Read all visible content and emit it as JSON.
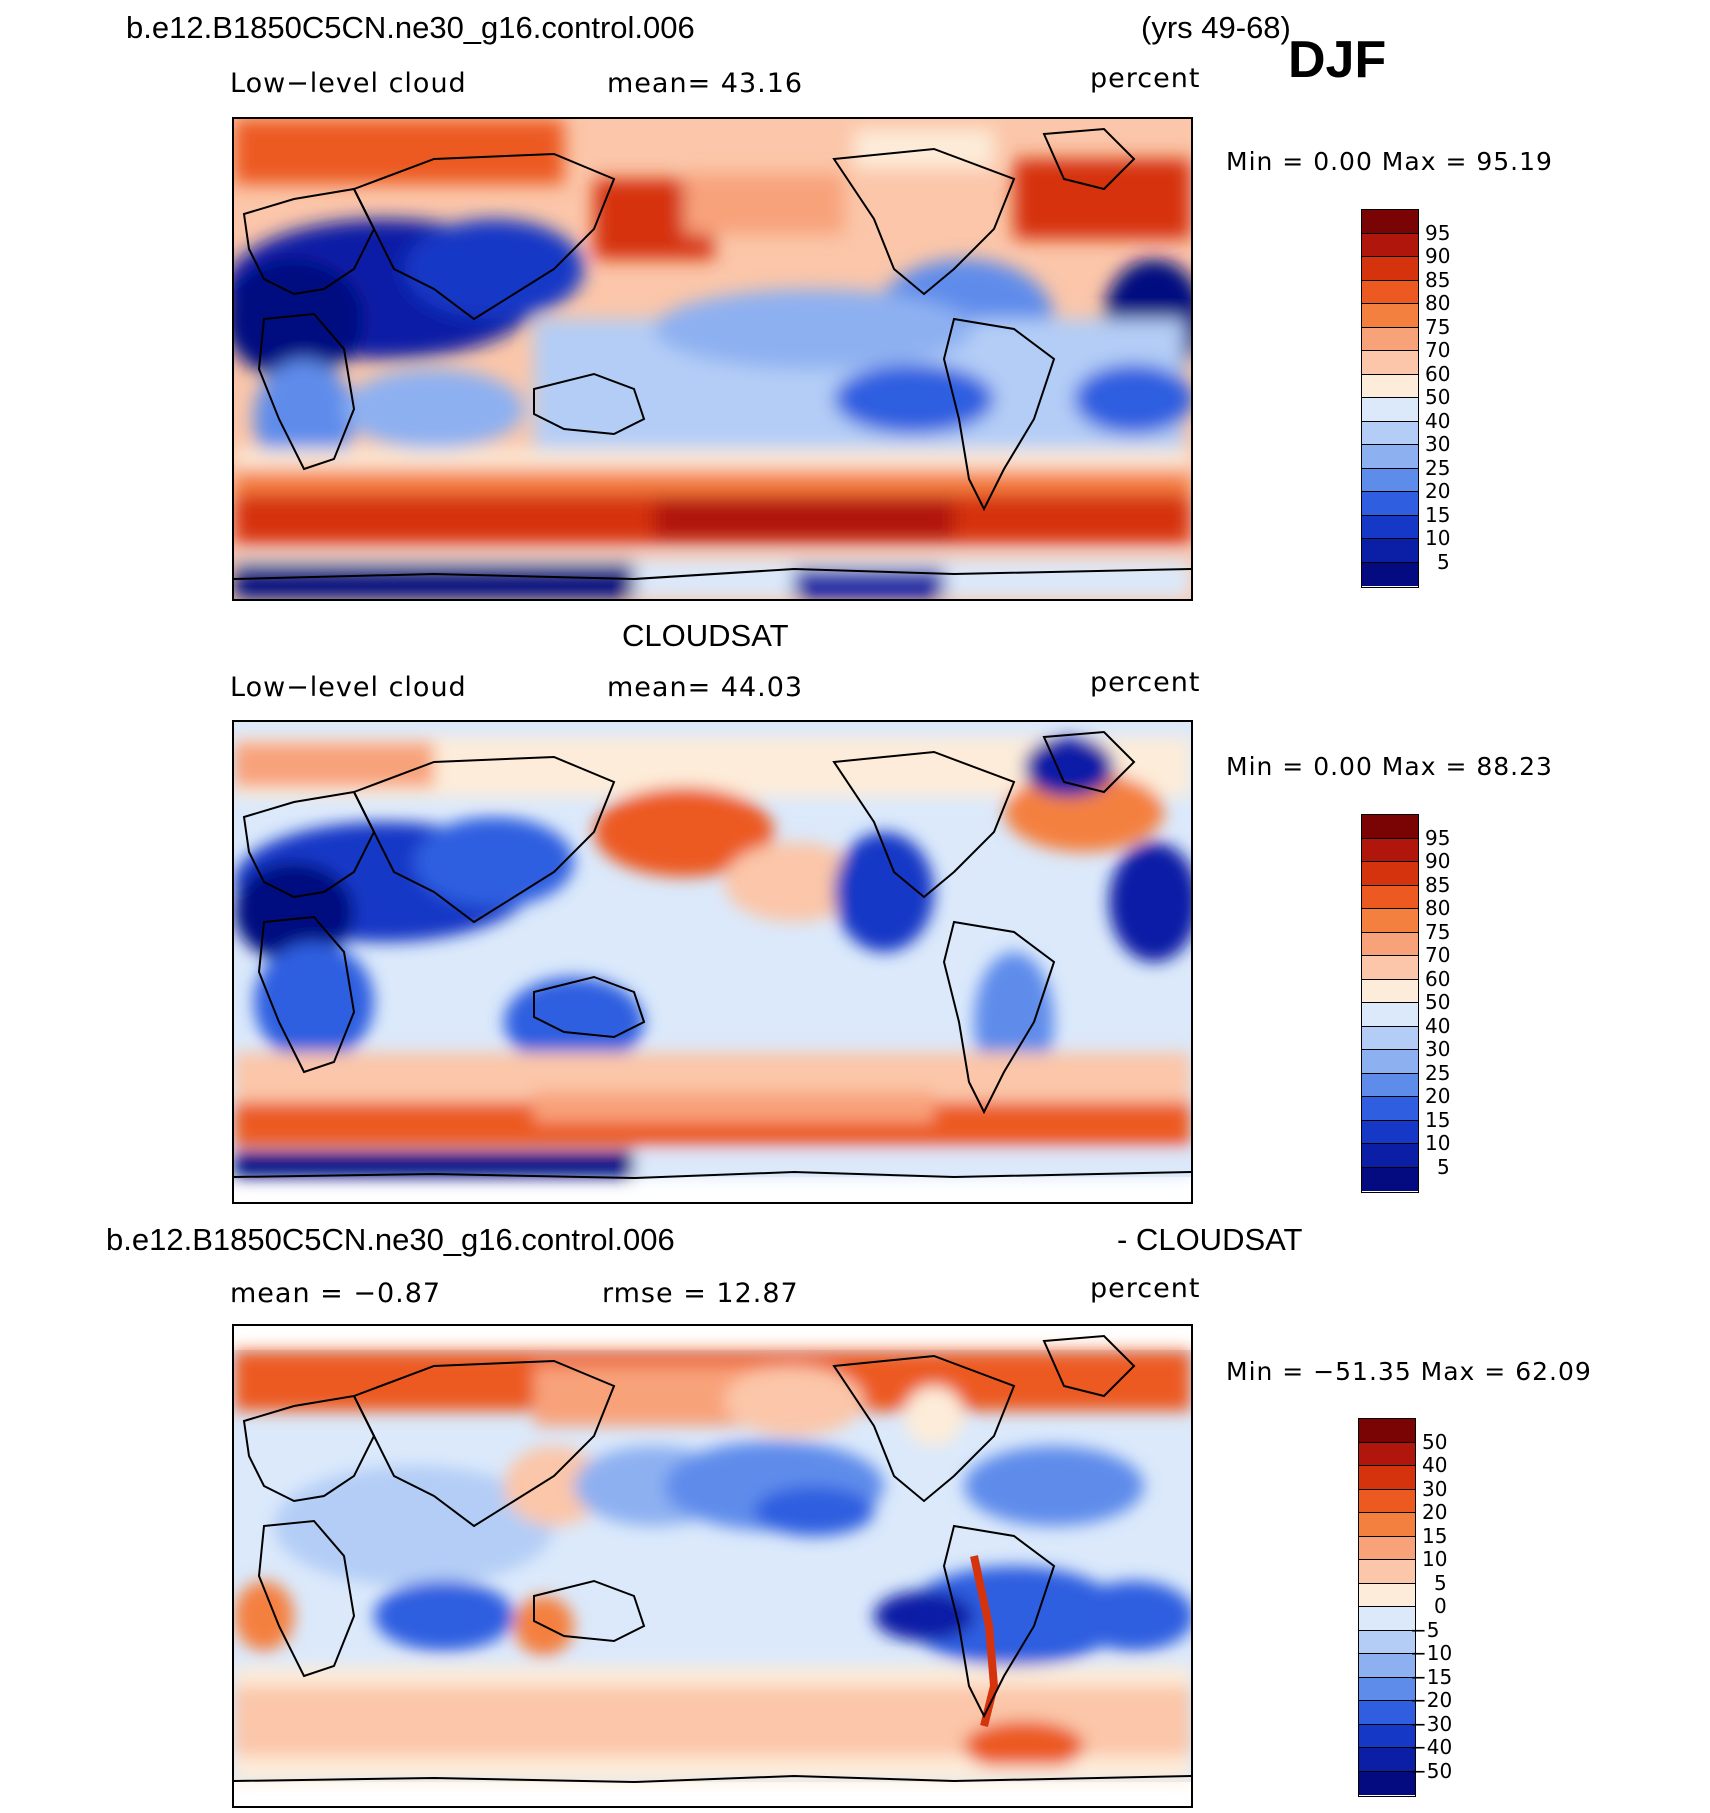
{
  "header": {
    "case_name": "b.e12.B1850C5CN.ne30_g16.control.006",
    "years": "(yrs 49-68)",
    "season": "DJF"
  },
  "panels": [
    {
      "id": "model",
      "field_label": "Low−level cloud",
      "stat1": "mean=   43.16",
      "units": "percent",
      "min_max": "Min  =     0.00  Max  =    95.19",
      "colorbar_labels": [
        "95",
        "90",
        "85",
        "80",
        "75",
        "70",
        "60",
        "50",
        "40",
        "30",
        "25",
        "20",
        "15",
        "10",
        "5"
      ],
      "colorbar_colors": [
        "#7a0403",
        "#b0160b",
        "#d5330e",
        "#ec5a22",
        "#f4803f",
        "#f8a27a",
        "#fbc6a9",
        "#fdecd9",
        "#dbe9fb",
        "#b3cdf6",
        "#8db0f1",
        "#5e8ceb",
        "#2f5fe0",
        "#1538c6",
        "#0b1fa6",
        "#040b80"
      ],
      "map_text": ""
    },
    {
      "id": "obs",
      "title": "CLOUDSAT",
      "field_label": "Low−level cloud",
      "stat1": "mean=   44.03",
      "units": "percent",
      "min_max": "Min  =     0.00  Max  =    88.23",
      "colorbar_labels": [
        "95",
        "90",
        "85",
        "80",
        "75",
        "70",
        "60",
        "50",
        "40",
        "30",
        "25",
        "20",
        "15",
        "10",
        "5"
      ],
      "colorbar_colors": [
        "#7a0403",
        "#b0160b",
        "#d5330e",
        "#ec5a22",
        "#f4803f",
        "#f8a27a",
        "#fbc6a9",
        "#fdecd9",
        "#dbe9fb",
        "#b3cdf6",
        "#8db0f1",
        "#5e8ceb",
        "#2f5fe0",
        "#1538c6",
        "#0b1fa6",
        "#040b80"
      ]
    },
    {
      "id": "diff",
      "title_left": "b.e12.B1850C5CN.ne30_g16.control.006",
      "title_right": "- CLOUDSAT",
      "stat1": "mean  =   −0.87",
      "stat2": "rmse  =    12.87",
      "units": "percent",
      "min_max": "Min  = −51.35  Max  =    62.09",
      "colorbar_labels": [
        "50",
        "40",
        "30",
        "20",
        "15",
        "10",
        "5",
        "0",
        "−5",
        "−10",
        "−15",
        "−20",
        "−30",
        "−40",
        "−50"
      ],
      "colorbar_colors": [
        "#7a0403",
        "#b0160b",
        "#d5330e",
        "#ec5a22",
        "#f4803f",
        "#f8a27a",
        "#fbc6a9",
        "#fdecd9",
        "#dbe9fb",
        "#b3cdf6",
        "#8db0f1",
        "#5e8ceb",
        "#2f5fe0",
        "#1538c6",
        "#0b1fa6",
        "#040b80"
      ]
    }
  ]
}
